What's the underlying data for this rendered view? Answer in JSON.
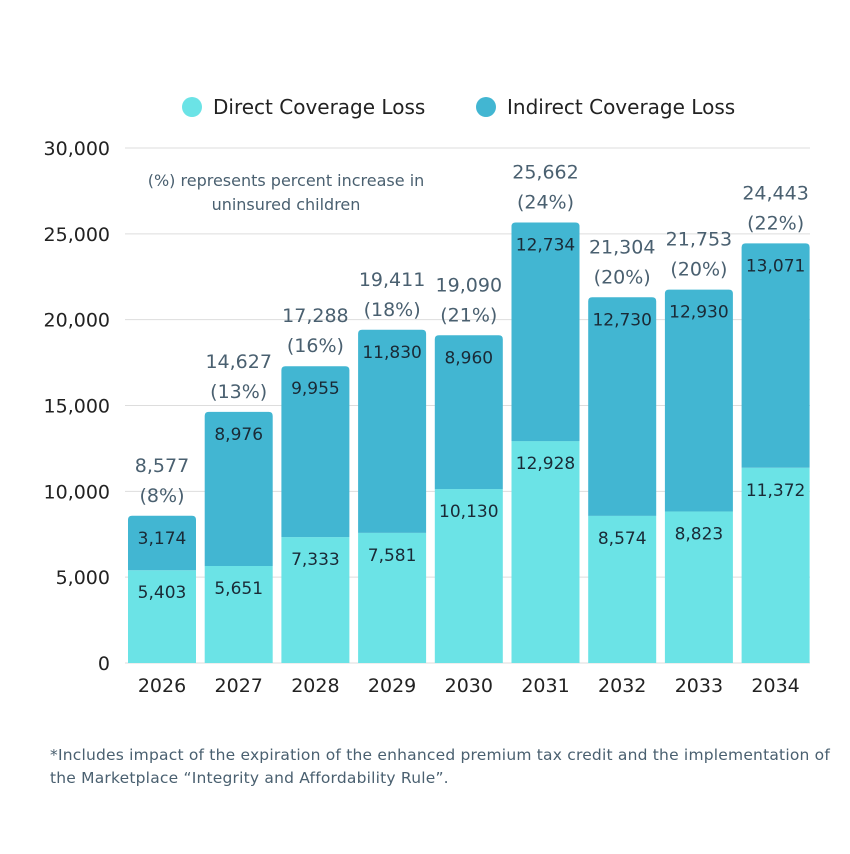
{
  "chart_data": {
    "type": "bar",
    "stacked": true,
    "categories": [
      "2026",
      "2027",
      "2028",
      "2029",
      "2030",
      "2031",
      "2032",
      "2033",
      "2034"
    ],
    "series": [
      {
        "name": "Direct Coverage Loss",
        "color": "#6be3e6",
        "values": [
          5403,
          5651,
          7333,
          7581,
          10130,
          12928,
          8574,
          8823,
          11372
        ]
      },
      {
        "name": "Indirect Coverage Loss",
        "color": "#42b6d2",
        "values": [
          3174,
          8976,
          9955,
          11830,
          8960,
          12734,
          12730,
          12930,
          13071
        ]
      }
    ],
    "value_labels": {
      "direct": [
        "5,403",
        "5,651",
        "7,333",
        "7,581",
        "10,130",
        "12,928",
        "8,574",
        "8,823",
        "11,372"
      ],
      "indirect": [
        "3,174",
        "8,976",
        "9,955",
        "11,830",
        "8,960",
        "12,734",
        "12,730",
        "12,930",
        "13,071"
      ]
    },
    "totals": [
      8577,
      14627,
      17288,
      19411,
      19090,
      25662,
      21304,
      21753,
      24443
    ],
    "total_labels": [
      "8,577",
      "14,627",
      "17,288",
      "19,411",
      "19,090",
      "25,662",
      "21,304",
      "21,753",
      "24,443"
    ],
    "percent_labels": [
      "(8%)",
      "(13%)",
      "(16%)",
      "(18%)",
      "(21%)",
      "(24%)",
      "(20%)",
      "(20%)",
      "(22%)"
    ],
    "ylim": [
      0,
      30000
    ],
    "yticks": [
      0,
      5000,
      10000,
      15000,
      20000,
      25000,
      30000
    ],
    "ytick_labels": [
      "0",
      "5,000",
      "10,000",
      "15,000",
      "20,000",
      "25,000",
      "30,000"
    ],
    "grid": true,
    "legend_placement": "top",
    "annotation": [
      "(%) represents percent increase in",
      "uninsured children"
    ]
  },
  "footnote": "*Includes impact of the expiration of the enhanced premium tax credit and the implementation of the Marketplace “Integrity and Affordability Rule”."
}
